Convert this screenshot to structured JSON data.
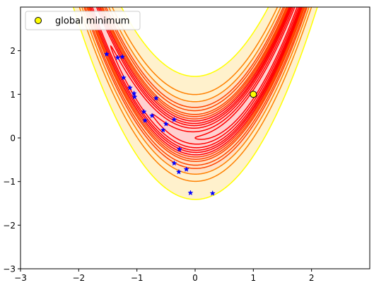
{
  "chart_data": {
    "type": "contour",
    "function": "rosenbrock",
    "xlim": [
      -3,
      3
    ],
    "ylim": [
      -3,
      3
    ],
    "x_ticks": [
      -3,
      -2,
      -1,
      0,
      1,
      2
    ],
    "y_ticks": [
      -3,
      -2,
      -1,
      0,
      1,
      2
    ],
    "x_tick_labels": [
      "−3",
      "−2",
      "−1",
      "0",
      "1",
      "2"
    ],
    "y_tick_labels": [
      "−3",
      "−2",
      "−1",
      "0",
      "1",
      "2"
    ],
    "grid": false,
    "legend_position": "top-left",
    "series": [
      {
        "name": "global minimum",
        "kind": "marker",
        "marker": "circle",
        "color": "#ffff00",
        "edgecolor": "#000000",
        "points": [
          [
            1,
            1
          ]
        ]
      },
      {
        "kind": "scatter",
        "marker": "star",
        "color": "#0000ff",
        "points": [
          [
            -1.52,
            1.92
          ],
          [
            -1.33,
            1.84
          ],
          [
            -1.25,
            1.86
          ],
          [
            -1.23,
            1.38
          ],
          [
            -1.12,
            1.15
          ],
          [
            -1.05,
            1.02
          ],
          [
            -1.04,
            0.94
          ],
          [
            -0.88,
            0.6
          ],
          [
            -0.86,
            0.4
          ],
          [
            -0.74,
            0.51
          ],
          [
            -0.67,
            0.91
          ],
          [
            -0.55,
            0.18
          ],
          [
            -0.5,
            0.32
          ],
          [
            -0.36,
            0.42
          ],
          [
            -0.36,
            -0.58
          ],
          [
            -0.27,
            -0.26
          ],
          [
            -0.28,
            -0.78
          ],
          [
            -0.15,
            -0.72
          ],
          [
            -0.08,
            -1.26
          ],
          [
            0.3,
            -1.27
          ]
        ]
      }
    ],
    "contour_levels": [
      1,
      3,
      6,
      9,
      12,
      16,
      20,
      25,
      30,
      40,
      50,
      70,
      100,
      200
    ],
    "contour_fill_colors": {
      "low": "#ffd0d0",
      "mid": "#ffe2c6",
      "high": "#fff1cc"
    }
  },
  "colors": {
    "level_low": "#ff0000",
    "level_mid": "#ff4400",
    "level_high": "#ff8000",
    "level_top": "#ffff00",
    "axis": "#000000"
  }
}
